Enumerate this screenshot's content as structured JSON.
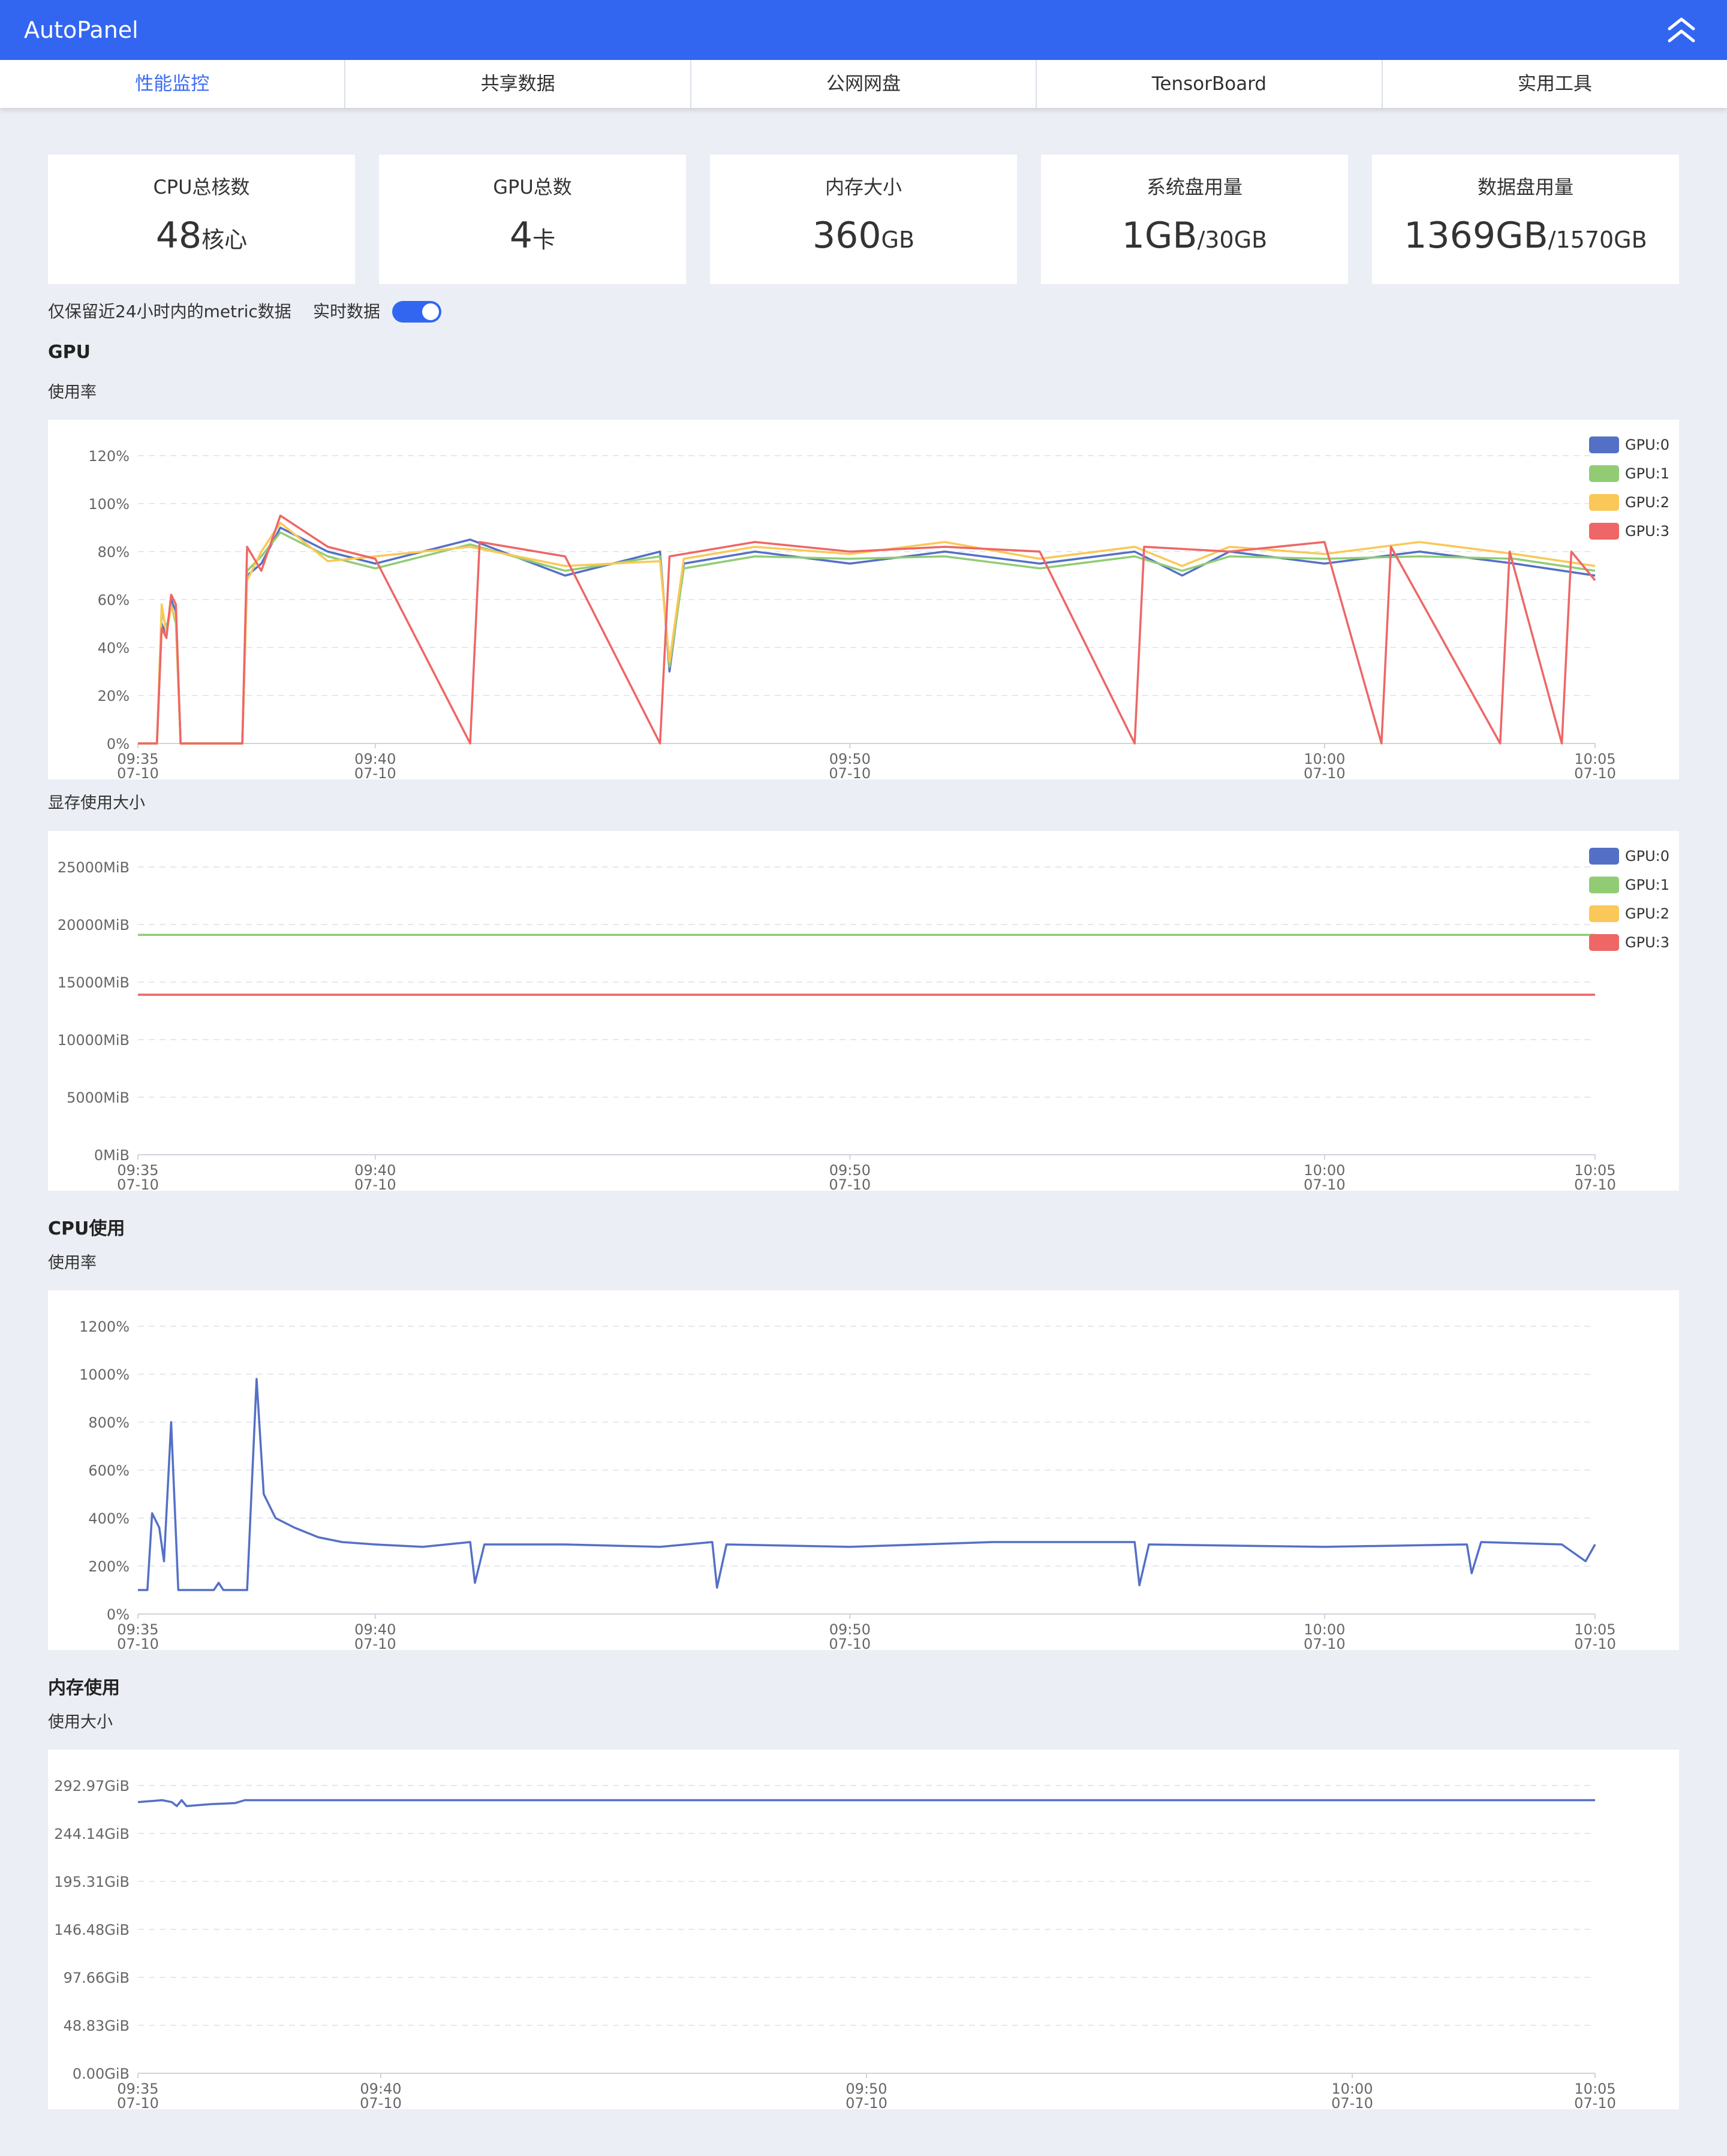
{
  "header": {
    "title": "AutoPanel",
    "collapse_icon": "double-chevron-up-icon"
  },
  "tabs": [
    {
      "label": "性能监控",
      "active": true
    },
    {
      "label": "共享数据",
      "active": false
    },
    {
      "label": "公网网盘",
      "active": false
    },
    {
      "label": "TensorBoard",
      "active": false
    },
    {
      "label": "实用工具",
      "active": false
    }
  ],
  "stats": [
    {
      "label": "CPU总核数",
      "value": "48",
      "unit": "核心"
    },
    {
      "label": "GPU总数",
      "value": "4",
      "unit": "卡"
    },
    {
      "label": "内存大小",
      "value": "360",
      "unit": "GB"
    },
    {
      "label": "系统盘用量",
      "value": "1GB",
      "unit": "/30GB"
    },
    {
      "label": "数据盘用量",
      "value": "1369GB",
      "unit": "/1570GB"
    }
  ],
  "note": "仅保留近24小时内的metric数据",
  "realtime": {
    "label": "实时数据",
    "enabled": true
  },
  "sections": {
    "gpu": {
      "title": "GPU",
      "usage_sub": "使用率",
      "mem_sub": "显存使用大小"
    },
    "cpu": {
      "title": "CPU使用",
      "usage_sub": "使用率"
    },
    "mem": {
      "title": "内存使用",
      "usage_sub": "使用大小"
    }
  },
  "colors": {
    "accent": "#3366f0",
    "gpu0": "#5470c6",
    "gpu1": "#91cc75",
    "gpu2": "#fac858",
    "gpu3": "#ee6666"
  },
  "chart_data": [
    {
      "id": "gpu-usage",
      "type": "line",
      "title": "使用率",
      "x_ticks": [
        {
          "time": "09:35",
          "date": "07-10"
        },
        {
          "time": "09:40",
          "date": "07-10"
        },
        {
          "time": "09:50",
          "date": "07-10"
        },
        {
          "time": "10:00",
          "date": "07-10"
        },
        {
          "time": "10:05",
          "date": "07-10"
        }
      ],
      "x_tick_minutes": [
        0,
        5,
        15,
        25,
        30.7
      ],
      "x_range_minutes": [
        0,
        30.7
      ],
      "y_ticks": [
        "0%",
        "20%",
        "40%",
        "60%",
        "80%",
        "100%",
        "120%"
      ],
      "ylim": [
        0,
        120
      ],
      "legend": [
        "GPU:0",
        "GPU:1",
        "GPU:2",
        "GPU:3"
      ],
      "legend_position": "top-right",
      "grid": true,
      "series": [
        {
          "name": "GPU:0",
          "points": [
            [
              0,
              0
            ],
            [
              0.4,
              0
            ],
            [
              0.5,
              50
            ],
            [
              0.6,
              45
            ],
            [
              0.7,
              60
            ],
            [
              0.8,
              55
            ],
            [
              0.9,
              0
            ],
            [
              2.2,
              0
            ],
            [
              2.3,
              70
            ],
            [
              2.6,
              75
            ],
            [
              3,
              90
            ],
            [
              4,
              80
            ],
            [
              5,
              75
            ],
            [
              7,
              85
            ],
            [
              9,
              70
            ],
            [
              11,
              80
            ],
            [
              11.2,
              30
            ],
            [
              11.5,
              75
            ],
            [
              13,
              80
            ],
            [
              15,
              75
            ],
            [
              17,
              80
            ],
            [
              19,
              75
            ],
            [
              21,
              80
            ],
            [
              22,
              70
            ],
            [
              23,
              80
            ],
            [
              25,
              75
            ],
            [
              27,
              80
            ],
            [
              29,
              75
            ],
            [
              30.7,
              70
            ]
          ]
        },
        {
          "name": "GPU:1",
          "points": [
            [
              0,
              0
            ],
            [
              0.4,
              0
            ],
            [
              0.5,
              55
            ],
            [
              0.6,
              48
            ],
            [
              0.7,
              58
            ],
            [
              0.8,
              50
            ],
            [
              0.9,
              0
            ],
            [
              2.2,
              0
            ],
            [
              2.3,
              72
            ],
            [
              2.6,
              78
            ],
            [
              3,
              88
            ],
            [
              4,
              78
            ],
            [
              5,
              73
            ],
            [
              7,
              83
            ],
            [
              9,
              72
            ],
            [
              11,
              78
            ],
            [
              11.2,
              32
            ],
            [
              11.5,
              73
            ],
            [
              13,
              78
            ],
            [
              15,
              77
            ],
            [
              17,
              78
            ],
            [
              19,
              73
            ],
            [
              21,
              78
            ],
            [
              22,
              72
            ],
            [
              23,
              78
            ],
            [
              25,
              77
            ],
            [
              27,
              78
            ],
            [
              29,
              77
            ],
            [
              30.7,
              72
            ]
          ]
        },
        {
          "name": "GPU:2",
          "points": [
            [
              0,
              0
            ],
            [
              0.4,
              0
            ],
            [
              0.5,
              58
            ],
            [
              0.6,
              46
            ],
            [
              0.7,
              57
            ],
            [
              0.8,
              52
            ],
            [
              0.9,
              0
            ],
            [
              2.2,
              0
            ],
            [
              2.3,
              68
            ],
            [
              2.6,
              80
            ],
            [
              3,
              92
            ],
            [
              4,
              76
            ],
            [
              5,
              78
            ],
            [
              7,
              82
            ],
            [
              9,
              74
            ],
            [
              11,
              76
            ],
            [
              11.2,
              34
            ],
            [
              11.5,
              77
            ],
            [
              13,
              82
            ],
            [
              15,
              79
            ],
            [
              17,
              84
            ],
            [
              19,
              77
            ],
            [
              21,
              82
            ],
            [
              22,
              74
            ],
            [
              23,
              82
            ],
            [
              25,
              79
            ],
            [
              27,
              84
            ],
            [
              29,
              79
            ],
            [
              30.7,
              74
            ]
          ]
        },
        {
          "name": "GPU:3",
          "points": [
            [
              0,
              0
            ],
            [
              0.4,
              0
            ],
            [
              0.5,
              48
            ],
            [
              0.6,
              44
            ],
            [
              0.7,
              62
            ],
            [
              0.8,
              58
            ],
            [
              0.9,
              0
            ],
            [
              2.2,
              0
            ],
            [
              2.3,
              82
            ],
            [
              2.6,
              72
            ],
            [
              3,
              95
            ],
            [
              4,
              82
            ],
            [
              5,
              77
            ],
            [
              7,
              0
            ],
            [
              7.2,
              84
            ],
            [
              9,
              78
            ],
            [
              11,
              0
            ],
            [
              11.2,
              78
            ],
            [
              13,
              84
            ],
            [
              15,
              80
            ],
            [
              17,
              82
            ],
            [
              19,
              80
            ],
            [
              21,
              0
            ],
            [
              21.2,
              82
            ],
            [
              23,
              80
            ],
            [
              25,
              84
            ],
            [
              26.2,
              0
            ],
            [
              26.4,
              82
            ],
            [
              28.7,
              0
            ],
            [
              28.9,
              80
            ],
            [
              30,
              0
            ],
            [
              30.2,
              80
            ],
            [
              30.7,
              68
            ]
          ]
        }
      ]
    },
    {
      "id": "gpu-mem",
      "type": "line",
      "title": "显存使用大小",
      "x_ticks": [
        {
          "time": "09:35",
          "date": "07-10"
        },
        {
          "time": "09:40",
          "date": "07-10"
        },
        {
          "time": "09:50",
          "date": "07-10"
        },
        {
          "time": "10:00",
          "date": "07-10"
        },
        {
          "time": "10:05",
          "date": "07-10"
        }
      ],
      "x_tick_minutes": [
        0,
        5,
        15,
        25,
        30.7
      ],
      "x_range_minutes": [
        0,
        30.7
      ],
      "y_ticks": [
        "0MiB",
        "5000MiB",
        "10000MiB",
        "15000MiB",
        "20000MiB",
        "25000MiB"
      ],
      "ylim": [
        0,
        25000
      ],
      "legend": [
        "GPU:0",
        "GPU:1",
        "GPU:2",
        "GPU:3"
      ],
      "legend_position": "top-right",
      "grid": true,
      "series": [
        {
          "name": "GPU:0",
          "points": [
            [
              0,
              19100
            ],
            [
              30.7,
              19100
            ]
          ]
        },
        {
          "name": "GPU:1",
          "points": [
            [
              0,
              19100
            ],
            [
              30.7,
              19100
            ]
          ]
        },
        {
          "name": "GPU:2",
          "points": [
            [
              0,
              13900
            ],
            [
              30.7,
              13900
            ]
          ]
        },
        {
          "name": "GPU:3",
          "points": [
            [
              0,
              13900
            ],
            [
              30.7,
              13900
            ]
          ]
        }
      ]
    },
    {
      "id": "cpu-usage",
      "type": "line",
      "title": "使用率",
      "x_ticks": [
        {
          "time": "09:35",
          "date": "07-10"
        },
        {
          "time": "09:40",
          "date": "07-10"
        },
        {
          "time": "09:50",
          "date": "07-10"
        },
        {
          "time": "10:00",
          "date": "07-10"
        },
        {
          "time": "10:05",
          "date": "07-10"
        }
      ],
      "x_tick_minutes": [
        0,
        5,
        15,
        25,
        30.7
      ],
      "x_range_minutes": [
        0,
        30.7
      ],
      "y_ticks": [
        "0%",
        "200%",
        "400%",
        "600%",
        "800%",
        "1000%",
        "1200%"
      ],
      "ylim": [
        0,
        1200
      ],
      "legend": [],
      "grid": true,
      "series": [
        {
          "name": "",
          "points": [
            [
              0,
              100
            ],
            [
              0.2,
              100
            ],
            [
              0.3,
              420
            ],
            [
              0.45,
              360
            ],
            [
              0.55,
              220
            ],
            [
              0.7,
              800
            ],
            [
              0.85,
              100
            ],
            [
              1.6,
              100
            ],
            [
              1.7,
              130
            ],
            [
              1.8,
              100
            ],
            [
              2.3,
              100
            ],
            [
              2.5,
              980
            ],
            [
              2.65,
              500
            ],
            [
              2.9,
              400
            ],
            [
              3.3,
              360
            ],
            [
              3.8,
              320
            ],
            [
              4.3,
              300
            ],
            [
              5,
              290
            ],
            [
              6,
              280
            ],
            [
              7,
              300
            ],
            [
              7.1,
              130
            ],
            [
              7.3,
              290
            ],
            [
              9,
              290
            ],
            [
              11,
              280
            ],
            [
              12.1,
              300
            ],
            [
              12.2,
              110
            ],
            [
              12.4,
              290
            ],
            [
              15,
              280
            ],
            [
              18,
              300
            ],
            [
              21,
              300
            ],
            [
              21.1,
              120
            ],
            [
              21.3,
              290
            ],
            [
              25,
              280
            ],
            [
              28,
              290
            ],
            [
              28.1,
              170
            ],
            [
              28.3,
              300
            ],
            [
              30,
              290
            ],
            [
              30.5,
              220
            ],
            [
              30.7,
              290
            ]
          ]
        }
      ]
    },
    {
      "id": "mem-usage",
      "type": "line",
      "title": "使用大小",
      "x_ticks": [
        {
          "time": "09:35",
          "date": "07-10"
        },
        {
          "time": "09:40",
          "date": "07-10"
        },
        {
          "time": "09:50",
          "date": "07-10"
        },
        {
          "time": "10:00",
          "date": "07-10"
        },
        {
          "time": "10:05",
          "date": "07-10"
        }
      ],
      "x_tick_minutes": [
        0,
        5,
        15,
        25,
        30
      ],
      "x_range_minutes": [
        0,
        30
      ],
      "y_ticks": [
        "0.00GiB",
        "48.83GiB",
        "97.66GiB",
        "146.48GiB",
        "195.31GiB",
        "244.14GiB",
        "292.97GiB"
      ],
      "ylim": [
        0,
        292.97
      ],
      "legend": [],
      "grid": true,
      "series": [
        {
          "name": "",
          "points": [
            [
              0,
              276
            ],
            [
              0.5,
              278
            ],
            [
              0.7,
              276
            ],
            [
              0.8,
              272
            ],
            [
              0.9,
              278
            ],
            [
              1,
              272
            ],
            [
              1.5,
              274
            ],
            [
              2,
              275
            ],
            [
              2.2,
              278
            ],
            [
              3,
              278
            ],
            [
              30,
              278
            ]
          ]
        }
      ]
    }
  ]
}
